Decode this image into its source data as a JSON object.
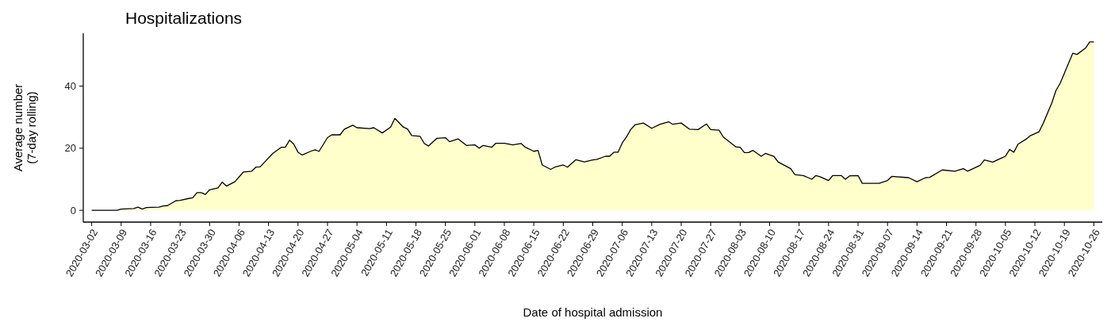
{
  "chart_data": {
    "type": "area",
    "title": "Hospitalizations",
    "xlabel": "Date of hospital admission",
    "ylabel": "Average number\n(7-day rolling)",
    "xlim": [
      "2020-02-29",
      "2020-10-28"
    ],
    "ylim": [
      -3.8,
      57
    ],
    "yticks": [
      0,
      20,
      40
    ],
    "xticks": [
      "2020-03-02",
      "2020-03-09",
      "2020-03-16",
      "2020-03-23",
      "2020-03-30",
      "2020-04-06",
      "2020-04-13",
      "2020-04-20",
      "2020-04-27",
      "2020-05-04",
      "2020-05-11",
      "2020-05-18",
      "2020-05-25",
      "2020-06-01",
      "2020-06-08",
      "2020-06-15",
      "2020-06-22",
      "2020-06-29",
      "2020-07-06",
      "2020-07-13",
      "2020-07-20",
      "2020-07-27",
      "2020-08-03",
      "2020-08-10",
      "2020-08-17",
      "2020-08-24",
      "2020-08-31",
      "2020-09-07",
      "2020-09-14",
      "2020-09-21",
      "2020-09-28",
      "2020-10-05",
      "2020-10-12",
      "2020-10-19",
      "2020-10-26"
    ],
    "x": [
      "2020-03-02",
      "2020-03-08",
      "2020-03-09",
      "2020-03-12",
      "2020-03-13",
      "2020-03-14",
      "2020-03-15",
      "2020-03-18",
      "2020-03-19",
      "2020-03-20",
      "2020-03-22",
      "2020-03-23",
      "2020-03-25",
      "2020-03-26",
      "2020-03-27",
      "2020-03-28",
      "2020-03-29",
      "2020-03-30",
      "2020-04-01",
      "2020-04-02",
      "2020-04-03",
      "2020-04-05",
      "2020-04-07",
      "2020-04-09",
      "2020-04-10",
      "2020-04-11",
      "2020-04-14",
      "2020-04-16",
      "2020-04-17",
      "2020-04-18",
      "2020-04-19",
      "2020-04-20",
      "2020-04-21",
      "2020-04-23",
      "2020-04-24",
      "2020-04-25",
      "2020-04-27",
      "2020-04-28",
      "2020-04-30",
      "2020-05-01",
      "2020-05-03",
      "2020-05-04",
      "2020-05-07",
      "2020-05-08",
      "2020-05-10",
      "2020-05-12",
      "2020-05-13",
      "2020-05-15",
      "2020-05-16",
      "2020-05-17",
      "2020-05-19",
      "2020-05-20",
      "2020-05-21",
      "2020-05-23",
      "2020-05-25",
      "2020-05-26",
      "2020-05-28",
      "2020-05-30",
      "2020-06-01",
      "2020-06-02",
      "2020-06-03",
      "2020-06-05",
      "2020-06-06",
      "2020-06-08",
      "2020-06-10",
      "2020-06-12",
      "2020-06-13",
      "2020-06-15",
      "2020-06-16",
      "2020-06-17",
      "2020-06-19",
      "2020-06-20",
      "2020-06-22",
      "2020-06-23",
      "2020-06-25",
      "2020-06-27",
      "2020-06-29",
      "2020-06-30",
      "2020-07-02",
      "2020-07-03",
      "2020-07-04",
      "2020-07-05",
      "2020-07-06",
      "2020-07-07",
      "2020-07-08",
      "2020-07-09",
      "2020-07-11",
      "2020-07-13",
      "2020-07-15",
      "2020-07-17",
      "2020-07-18",
      "2020-07-20",
      "2020-07-22",
      "2020-07-24",
      "2020-07-26",
      "2020-07-27",
      "2020-07-29",
      "2020-07-30",
      "2020-08-02",
      "2020-08-03",
      "2020-08-04",
      "2020-08-05",
      "2020-08-06",
      "2020-08-08",
      "2020-08-09",
      "2020-08-11",
      "2020-08-12",
      "2020-08-15",
      "2020-08-16",
      "2020-08-18",
      "2020-08-20",
      "2020-08-21",
      "2020-08-22",
      "2020-08-24",
      "2020-08-25",
      "2020-08-27",
      "2020-08-28",
      "2020-08-29",
      "2020-08-31",
      "2020-09-01",
      "2020-09-05",
      "2020-09-07",
      "2020-09-08",
      "2020-09-12",
      "2020-09-14",
      "2020-09-16",
      "2020-09-17",
      "2020-09-20",
      "2020-09-23",
      "2020-09-25",
      "2020-09-26",
      "2020-09-29",
      "2020-09-30",
      "2020-10-02",
      "2020-10-04",
      "2020-10-05",
      "2020-10-06",
      "2020-10-07",
      "2020-10-08",
      "2020-10-10",
      "2020-10-11",
      "2020-10-13",
      "2020-10-14",
      "2020-10-16",
      "2020-10-17",
      "2020-10-18",
      "2020-10-21",
      "2020-10-22",
      "2020-10-24",
      "2020-10-25",
      "2020-10-26"
    ],
    "series": [
      {
        "color": "#ffffcc",
        "values": [
          0,
          0,
          0.4,
          0.6,
          1.0,
          0.4,
          0.9,
          1.0,
          1.4,
          1.5,
          3.1,
          3.2,
          3.8,
          4.0,
          5.7,
          5.7,
          5.1,
          6.6,
          7.2,
          9.1,
          7.8,
          9.2,
          12.3,
          12.6,
          13.9,
          14.0,
          18.3,
          20.3,
          20.3,
          22.6,
          21.3,
          18.7,
          17.8,
          19.0,
          19.5,
          19.0,
          23.4,
          24.3,
          24.3,
          26.1,
          27.4,
          26.6,
          26.3,
          26.6,
          24.9,
          26.8,
          29.6,
          26.8,
          26.2,
          24.1,
          23.8,
          21.5,
          20.7,
          23.2,
          23.4,
          22.1,
          23.0,
          20.9,
          21.1,
          20.0,
          20.9,
          20.3,
          21.6,
          21.6,
          21.1,
          21.5,
          20.3,
          19.0,
          19.3,
          14.6,
          13.2,
          13.9,
          14.6,
          13.9,
          16.3,
          15.6,
          16.2,
          16.4,
          17.4,
          17.4,
          18.7,
          18.7,
          21.7,
          23.6,
          26.0,
          27.5,
          28.1,
          26.4,
          27.7,
          28.5,
          27.7,
          28.1,
          26.1,
          26.0,
          27.8,
          26.0,
          25.8,
          23.6,
          20.4,
          20.3,
          18.6,
          18.6,
          19.3,
          17.4,
          18.3,
          17.4,
          15.6,
          13.4,
          11.5,
          11.2,
          10.0,
          11.2,
          10.8,
          9.6,
          11.2,
          11.2,
          10.0,
          11.1,
          11.2,
          8.7,
          8.7,
          9.6,
          10.9,
          10.5,
          9.2,
          10.5,
          10.6,
          13.0,
          12.6,
          13.4,
          12.6,
          14.5,
          16.2,
          15.5,
          16.8,
          17.4,
          19.6,
          18.7,
          21.3,
          23.0,
          24.1,
          25.3,
          28.1,
          34.5,
          38.6,
          40.9,
          50.6,
          50.2,
          52.2,
          54.2,
          54.2
        ]
      }
    ]
  }
}
